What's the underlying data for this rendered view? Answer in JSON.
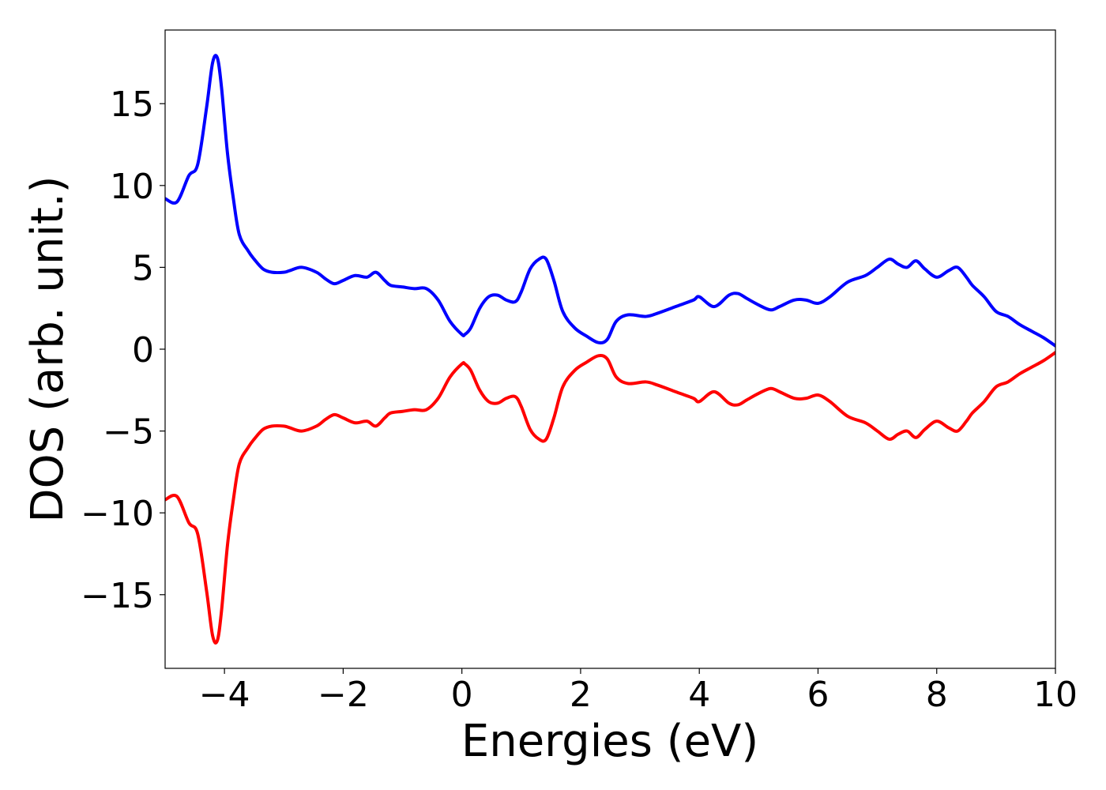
{
  "chart_data": {
    "type": "line",
    "title": "",
    "xlabel": "Energies (eV)",
    "ylabel": "DOS (arb. unit.)",
    "xlim": [
      -5,
      10
    ],
    "ylim": [
      -19.5,
      19.5
    ],
    "grid": false,
    "legend": "none",
    "xticks": [
      -4,
      -2,
      0,
      2,
      4,
      6,
      8,
      10
    ],
    "xtick_labels": [
      "−4",
      "−2",
      "0",
      "2",
      "4",
      "6",
      "8",
      "10"
    ],
    "yticks": [
      15,
      10,
      5,
      0,
      -5,
      -10,
      -15
    ],
    "ytick_labels": [
      "15",
      "10",
      "5",
      "0",
      "−5",
      "−10",
      "−15"
    ],
    "series": [
      {
        "color": "#0000ff",
        "x": [
          -5.0,
          -4.8,
          -4.6,
          -4.45,
          -4.3,
          -4.2,
          -4.12,
          -4.05,
          -3.95,
          -3.85,
          -3.75,
          -3.6,
          -3.5,
          -3.35,
          -3.2,
          -3.0,
          -2.9,
          -2.7,
          -2.45,
          -2.3,
          -2.15,
          -2.0,
          -1.8,
          -1.6,
          -1.45,
          -1.3,
          -1.2,
          -1.0,
          -0.8,
          -0.6,
          -0.4,
          -0.2,
          0.0,
          0.05,
          0.15,
          0.3,
          0.45,
          0.6,
          0.75,
          0.9,
          1.0,
          1.15,
          1.3,
          1.42,
          1.55,
          1.7,
          1.9,
          2.1,
          2.3,
          2.45,
          2.6,
          2.8,
          3.1,
          3.3,
          3.6,
          3.9,
          4.0,
          4.25,
          4.5,
          4.65,
          4.8,
          5.0,
          5.2,
          5.35,
          5.6,
          5.8,
          6.0,
          6.2,
          6.5,
          6.8,
          7.0,
          7.2,
          7.35,
          7.5,
          7.65,
          7.8,
          8.0,
          8.2,
          8.35,
          8.5,
          8.6,
          8.8,
          9.0,
          9.2,
          9.4,
          9.6,
          9.8,
          10.0
        ],
        "y": [
          9.2,
          9.0,
          10.6,
          11.3,
          14.8,
          17.5,
          17.8,
          16.0,
          12.0,
          9.2,
          7.0,
          6.0,
          5.5,
          4.9,
          4.7,
          4.7,
          4.8,
          5.0,
          4.7,
          4.3,
          4.0,
          4.2,
          4.5,
          4.4,
          4.7,
          4.2,
          3.9,
          3.8,
          3.7,
          3.7,
          3.0,
          1.7,
          0.9,
          0.9,
          1.3,
          2.5,
          3.2,
          3.3,
          3.0,
          2.9,
          3.5,
          4.9,
          5.5,
          5.5,
          4.2,
          2.3,
          1.3,
          0.8,
          0.4,
          0.6,
          1.7,
          2.1,
          2.0,
          2.2,
          2.6,
          3.0,
          3.2,
          2.6,
          3.3,
          3.4,
          3.1,
          2.7,
          2.4,
          2.6,
          3.0,
          3.0,
          2.8,
          3.2,
          4.1,
          4.5,
          5.0,
          5.5,
          5.2,
          5.0,
          5.4,
          4.9,
          4.4,
          4.8,
          5.0,
          4.4,
          3.9,
          3.2,
          2.3,
          2.0,
          1.5,
          1.1,
          0.7,
          0.2
        ]
      },
      {
        "color": "#ff0000",
        "x": [
          -5.0,
          -4.8,
          -4.6,
          -4.45,
          -4.3,
          -4.2,
          -4.12,
          -4.05,
          -3.95,
          -3.85,
          -3.75,
          -3.6,
          -3.5,
          -3.35,
          -3.2,
          -3.0,
          -2.9,
          -2.7,
          -2.45,
          -2.3,
          -2.15,
          -2.0,
          -1.8,
          -1.6,
          -1.45,
          -1.3,
          -1.2,
          -1.0,
          -0.8,
          -0.6,
          -0.4,
          -0.2,
          0.0,
          0.05,
          0.15,
          0.3,
          0.45,
          0.6,
          0.75,
          0.9,
          1.0,
          1.15,
          1.3,
          1.42,
          1.55,
          1.7,
          1.9,
          2.1,
          2.3,
          2.45,
          2.6,
          2.8,
          3.1,
          3.3,
          3.6,
          3.9,
          4.0,
          4.25,
          4.5,
          4.65,
          4.8,
          5.0,
          5.2,
          5.35,
          5.6,
          5.8,
          6.0,
          6.2,
          6.5,
          6.8,
          7.0,
          7.2,
          7.35,
          7.5,
          7.65,
          7.8,
          8.0,
          8.2,
          8.35,
          8.5,
          8.6,
          8.8,
          9.0,
          9.2,
          9.4,
          9.6,
          9.8,
          10.0
        ],
        "y": [
          -9.2,
          -9.0,
          -10.6,
          -11.3,
          -14.8,
          -17.5,
          -17.8,
          -16.0,
          -12.0,
          -9.2,
          -7.0,
          -6.0,
          -5.5,
          -4.9,
          -4.7,
          -4.7,
          -4.8,
          -5.0,
          -4.7,
          -4.3,
          -4.0,
          -4.2,
          -4.5,
          -4.4,
          -4.7,
          -4.2,
          -3.9,
          -3.8,
          -3.7,
          -3.7,
          -3.0,
          -1.7,
          -0.9,
          -0.9,
          -1.3,
          -2.5,
          -3.2,
          -3.3,
          -3.0,
          -2.9,
          -3.5,
          -4.9,
          -5.5,
          -5.5,
          -4.2,
          -2.3,
          -1.3,
          -0.8,
          -0.4,
          -0.6,
          -1.7,
          -2.1,
          -2.0,
          -2.2,
          -2.6,
          -3.0,
          -3.2,
          -2.6,
          -3.3,
          -3.4,
          -3.1,
          -2.7,
          -2.4,
          -2.6,
          -3.0,
          -3.0,
          -2.8,
          -3.2,
          -4.1,
          -4.5,
          -5.0,
          -5.5,
          -5.2,
          -5.0,
          -5.4,
          -4.9,
          -4.4,
          -4.8,
          -5.0,
          -4.4,
          -3.9,
          -3.2,
          -2.3,
          -2.0,
          -1.5,
          -1.1,
          -0.7,
          -0.2
        ]
      }
    ]
  }
}
